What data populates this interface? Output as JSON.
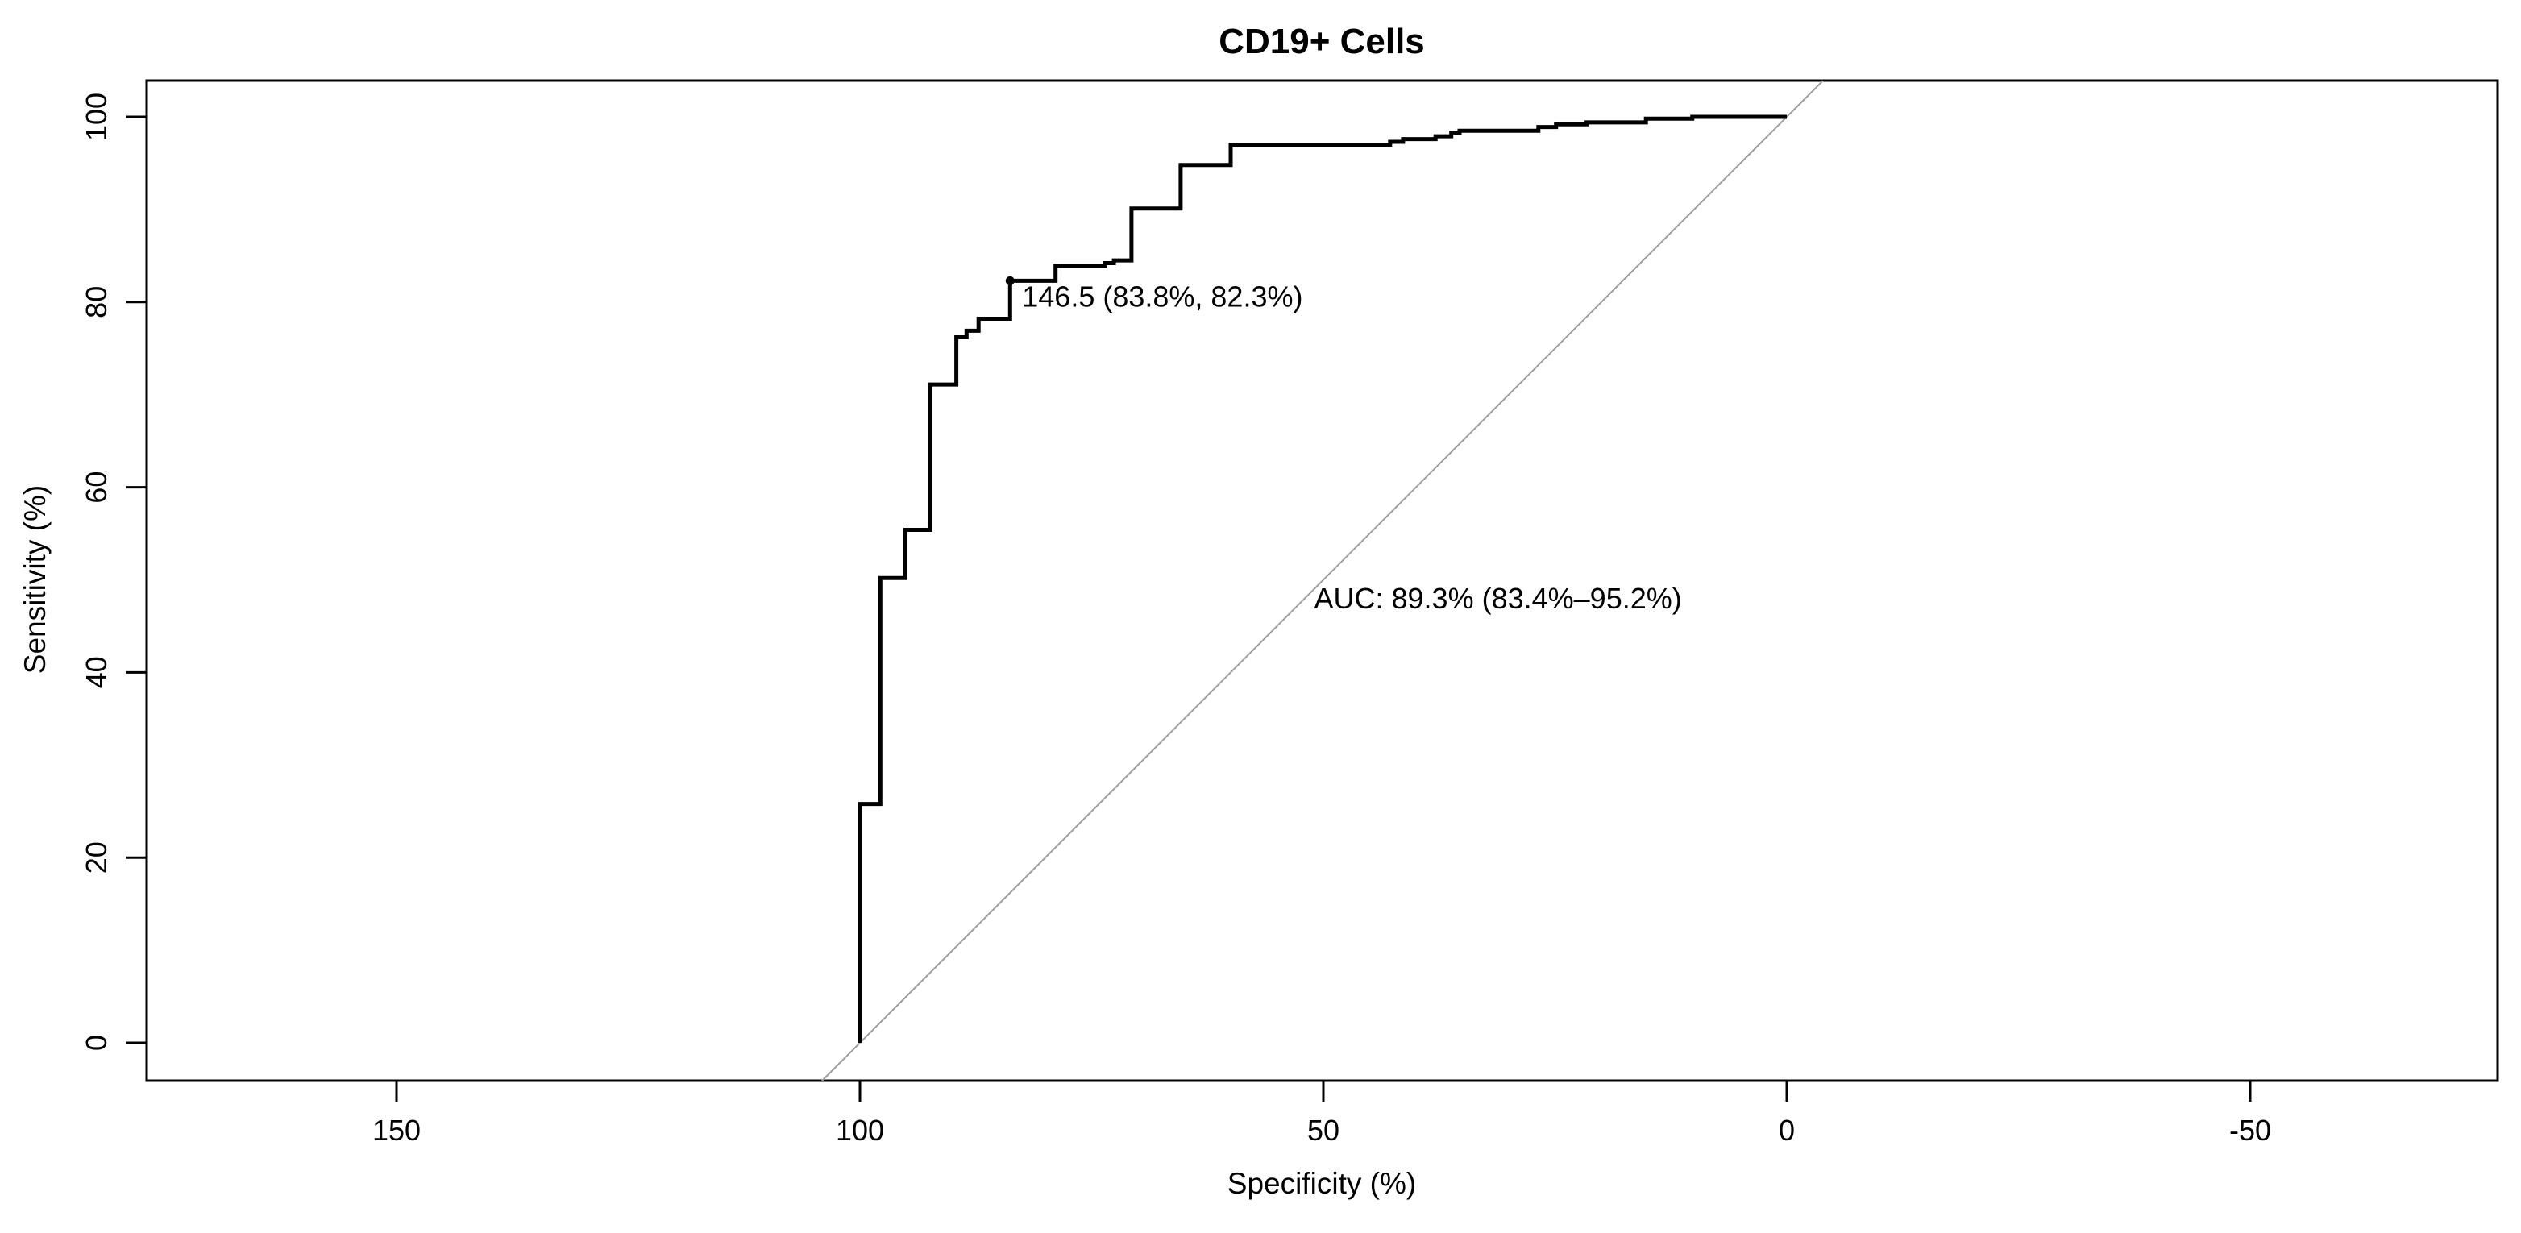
{
  "chart_data": {
    "type": "line",
    "chart_kind": "roc_step_curve",
    "title": "CD19+ Cells",
    "xlabel": "Specificity (%)",
    "ylabel": "Sensitivity (%)",
    "x_axis_reversed": true,
    "x_ticks": [
      150,
      100,
      50,
      0,
      -50
    ],
    "x_tick_labels": [
      "150",
      "100",
      "50",
      "0",
      "-50"
    ],
    "y_ticks": [
      0,
      20,
      40,
      60,
      80,
      100
    ],
    "y_tick_labels": [
      "0",
      "20",
      "40",
      "60",
      "80",
      "100"
    ],
    "xlim": [
      177.6,
      -77.0
    ],
    "ylim": [
      -4.1,
      103.9
    ],
    "grid": false,
    "legend": false,
    "series": [
      {
        "name": "ROC curve",
        "color": "#000000",
        "points_spec_sens": [
          [
            100.0,
            0.0
          ],
          [
            100.0,
            25.8
          ],
          [
            97.8,
            25.8
          ],
          [
            97.8,
            50.2
          ],
          [
            95.1,
            50.2
          ],
          [
            95.1,
            55.4
          ],
          [
            92.4,
            55.4
          ],
          [
            92.4,
            71.1
          ],
          [
            89.6,
            71.1
          ],
          [
            89.6,
            76.2
          ],
          [
            88.5,
            76.2
          ],
          [
            88.5,
            76.9
          ],
          [
            87.2,
            76.9
          ],
          [
            87.2,
            78.2
          ],
          [
            83.8,
            78.2
          ],
          [
            83.8,
            82.3
          ],
          [
            78.9,
            82.3
          ],
          [
            78.9,
            83.9
          ],
          [
            73.6,
            83.9
          ],
          [
            73.6,
            84.2
          ],
          [
            72.6,
            84.2
          ],
          [
            72.6,
            84.5
          ],
          [
            70.7,
            84.5
          ],
          [
            70.7,
            90.1
          ],
          [
            65.4,
            90.1
          ],
          [
            65.4,
            94.8
          ],
          [
            60.0,
            94.8
          ],
          [
            60.0,
            97.0
          ],
          [
            42.8,
            97.0
          ],
          [
            42.8,
            97.3
          ],
          [
            41.4,
            97.3
          ],
          [
            41.4,
            97.6
          ],
          [
            37.9,
            97.6
          ],
          [
            37.9,
            97.9
          ],
          [
            36.2,
            97.9
          ],
          [
            36.2,
            98.3
          ],
          [
            35.3,
            98.3
          ],
          [
            35.3,
            98.5
          ],
          [
            26.8,
            98.5
          ],
          [
            26.8,
            98.9
          ],
          [
            24.9,
            98.9
          ],
          [
            24.9,
            99.2
          ],
          [
            21.6,
            99.2
          ],
          [
            21.6,
            99.4
          ],
          [
            15.2,
            99.4
          ],
          [
            15.2,
            99.8
          ],
          [
            10.2,
            99.8
          ],
          [
            10.2,
            100.0
          ],
          [
            3.5,
            100.0
          ],
          [
            0.0,
            100.0
          ]
        ]
      }
    ],
    "diagonal_reference": {
      "description": "identity line sens = 100 - spec",
      "color": "#9e9e9e",
      "points_spec_sens": [
        [
          104.1,
          -4.1
        ],
        [
          -3.9,
          103.9
        ]
      ]
    },
    "threshold_annotation": {
      "label": "146.5 (83.8%, 82.3%)",
      "threshold": 146.5,
      "specificity_pct": 83.8,
      "sensitivity_pct": 82.3,
      "marker": "filled-dot",
      "label_anchor_spec_sens": [
        82.5,
        79.5
      ]
    },
    "auc_annotation": {
      "label": "AUC: 89.3% (83.4%–95.2%)",
      "auc_pct": 89.3,
      "ci_low_pct": 83.4,
      "ci_high_pct": 95.2,
      "label_anchor_spec_sens": [
        51.0,
        46.9
      ]
    },
    "colors": {
      "background": "#ffffff",
      "curve": "#000000",
      "diagonal": "#9e9e9e",
      "text": "#000000",
      "box": "#000000"
    }
  }
}
